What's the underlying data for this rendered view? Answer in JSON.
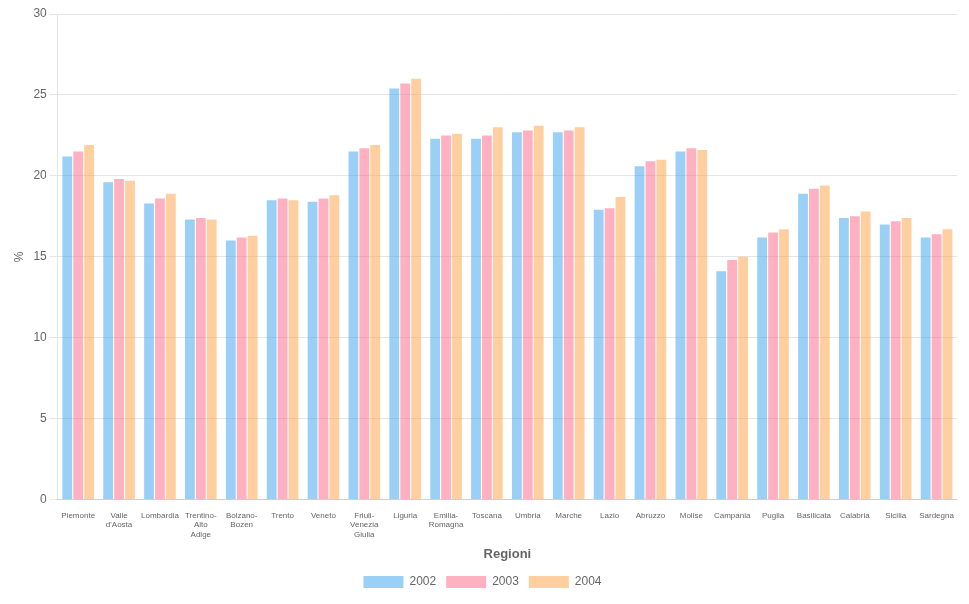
{
  "chart_data": {
    "type": "bar",
    "categories": [
      "Piemonte",
      "Valle\nd'Aosta",
      "Lombardia",
      "Trentino-\nAlto\nAdige",
      "Bolzano-\nBozen",
      "Trento",
      "Veneto",
      "Friuli-\nVenezia\nGiulia",
      "Liguria",
      "Emilia-\nRomagna",
      "Toscana",
      "Umbria",
      "Marche",
      "Lazio",
      "Abruzzo",
      "Molise",
      "Campania",
      "Puglia",
      "Basilicata",
      "Calabria",
      "Sicilia",
      "Sardegna"
    ],
    "series": [
      {
        "name": "2002",
        "values": [
          21.2,
          19.6,
          18.3,
          17.3,
          16.0,
          18.5,
          18.4,
          21.5,
          25.4,
          22.3,
          22.3,
          22.7,
          22.7,
          17.9,
          20.6,
          21.5,
          14.1,
          16.2,
          18.9,
          17.4,
          17.0,
          16.2
        ]
      },
      {
        "name": "2003",
        "values": [
          21.5,
          19.8,
          18.6,
          17.4,
          16.2,
          18.6,
          18.6,
          21.7,
          25.7,
          22.5,
          22.5,
          22.8,
          22.8,
          18.0,
          20.9,
          21.7,
          14.8,
          16.5,
          19.2,
          17.5,
          17.2,
          16.4
        ]
      },
      {
        "name": "2004",
        "values": [
          21.9,
          19.7,
          18.9,
          17.3,
          16.3,
          18.5,
          18.8,
          21.9,
          26.0,
          22.6,
          23.0,
          23.1,
          23.0,
          18.7,
          21.0,
          21.6,
          15.0,
          16.7,
          19.4,
          17.8,
          17.4,
          16.7
        ]
      }
    ],
    "xlabel": "Regioni",
    "ylabel": "%",
    "ylim": [
      0,
      30
    ],
    "yticks": [
      0,
      5,
      10,
      15,
      20,
      25,
      30
    ],
    "grid": true,
    "legend": "bottom"
  }
}
